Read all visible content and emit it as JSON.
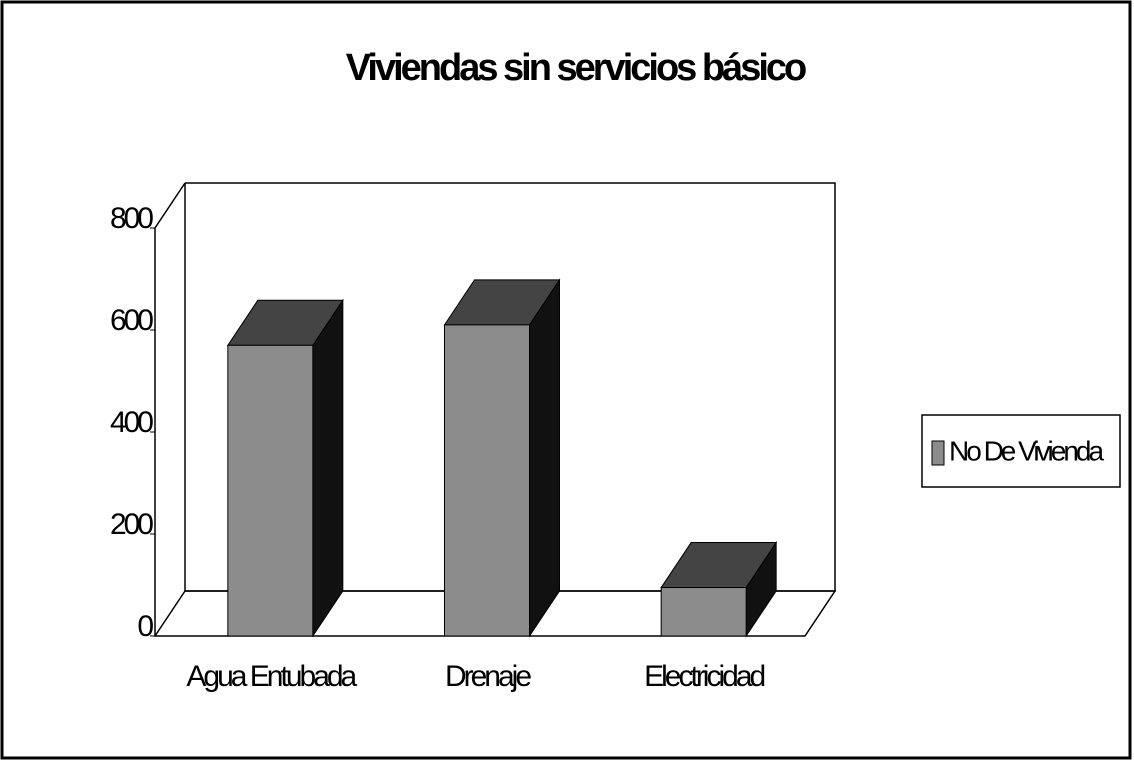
{
  "chart_data": {
    "type": "bar",
    "title": "Viviendas sin servicios básico",
    "categories": [
      "Agua Entubada",
      "Drenaje",
      "Electricidad"
    ],
    "series": [
      {
        "name": "No De Vivienda",
        "color": "#8c8c8c",
        "values": [
          570,
          610,
          95
        ]
      }
    ],
    "ylim": [
      0,
      800
    ],
    "yticks": [
      0,
      200,
      400,
      600,
      800
    ],
    "grid": false,
    "legend": "right"
  }
}
